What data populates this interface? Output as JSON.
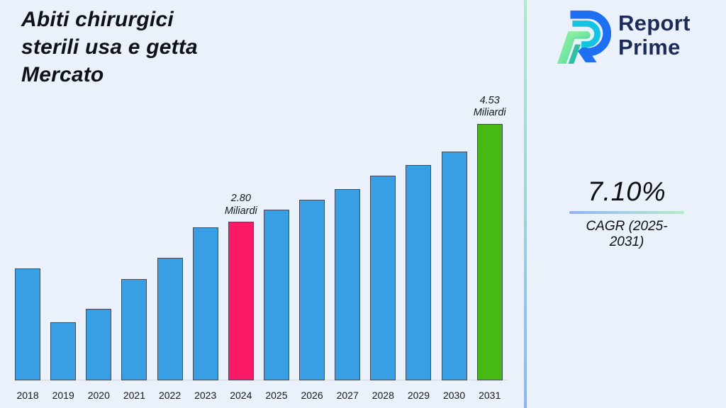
{
  "title": "Abiti chirurgici\nsterili usa e getta\nMercato",
  "brand": {
    "line1": "Report",
    "line2": "Prime"
  },
  "cagr": {
    "value": "7.10%",
    "label": "CAGR (2025-2031)"
  },
  "colors": {
    "background": "#eaf1fb",
    "bar_default": "#399fe5",
    "bar_edge": "#43485a",
    "highlight_2024": "#fa1a68",
    "highlight_2031": "#46b915",
    "brand_navy": "#1d2b59",
    "divider_top": "#b2e9c9",
    "divider_bottom": "#8fb3f6"
  },
  "chart_data": {
    "type": "bar",
    "title": "Abiti chirurgici sterili usa e getta Mercato",
    "unit": "Miliardi",
    "categories": [
      "2018",
      "2019",
      "2020",
      "2021",
      "2022",
      "2023",
      "2024",
      "2025",
      "2026",
      "2027",
      "2028",
      "2029",
      "2030",
      "2031"
    ],
    "values": [
      1.97,
      1.02,
      1.26,
      1.79,
      2.16,
      2.7,
      2.8,
      3.01,
      3.19,
      3.38,
      3.61,
      3.8,
      4.04,
      4.53
    ],
    "ylim": [
      0,
      5
    ],
    "grid": false,
    "legend": "none",
    "bar_colors": {
      "2024": "#fa1a68",
      "2031": "#46b915"
    },
    "annotations": [
      {
        "category": "2024",
        "text": "2.80\nMiliardi"
      },
      {
        "category": "2031",
        "text": "4.53\nMiliardi"
      }
    ]
  }
}
